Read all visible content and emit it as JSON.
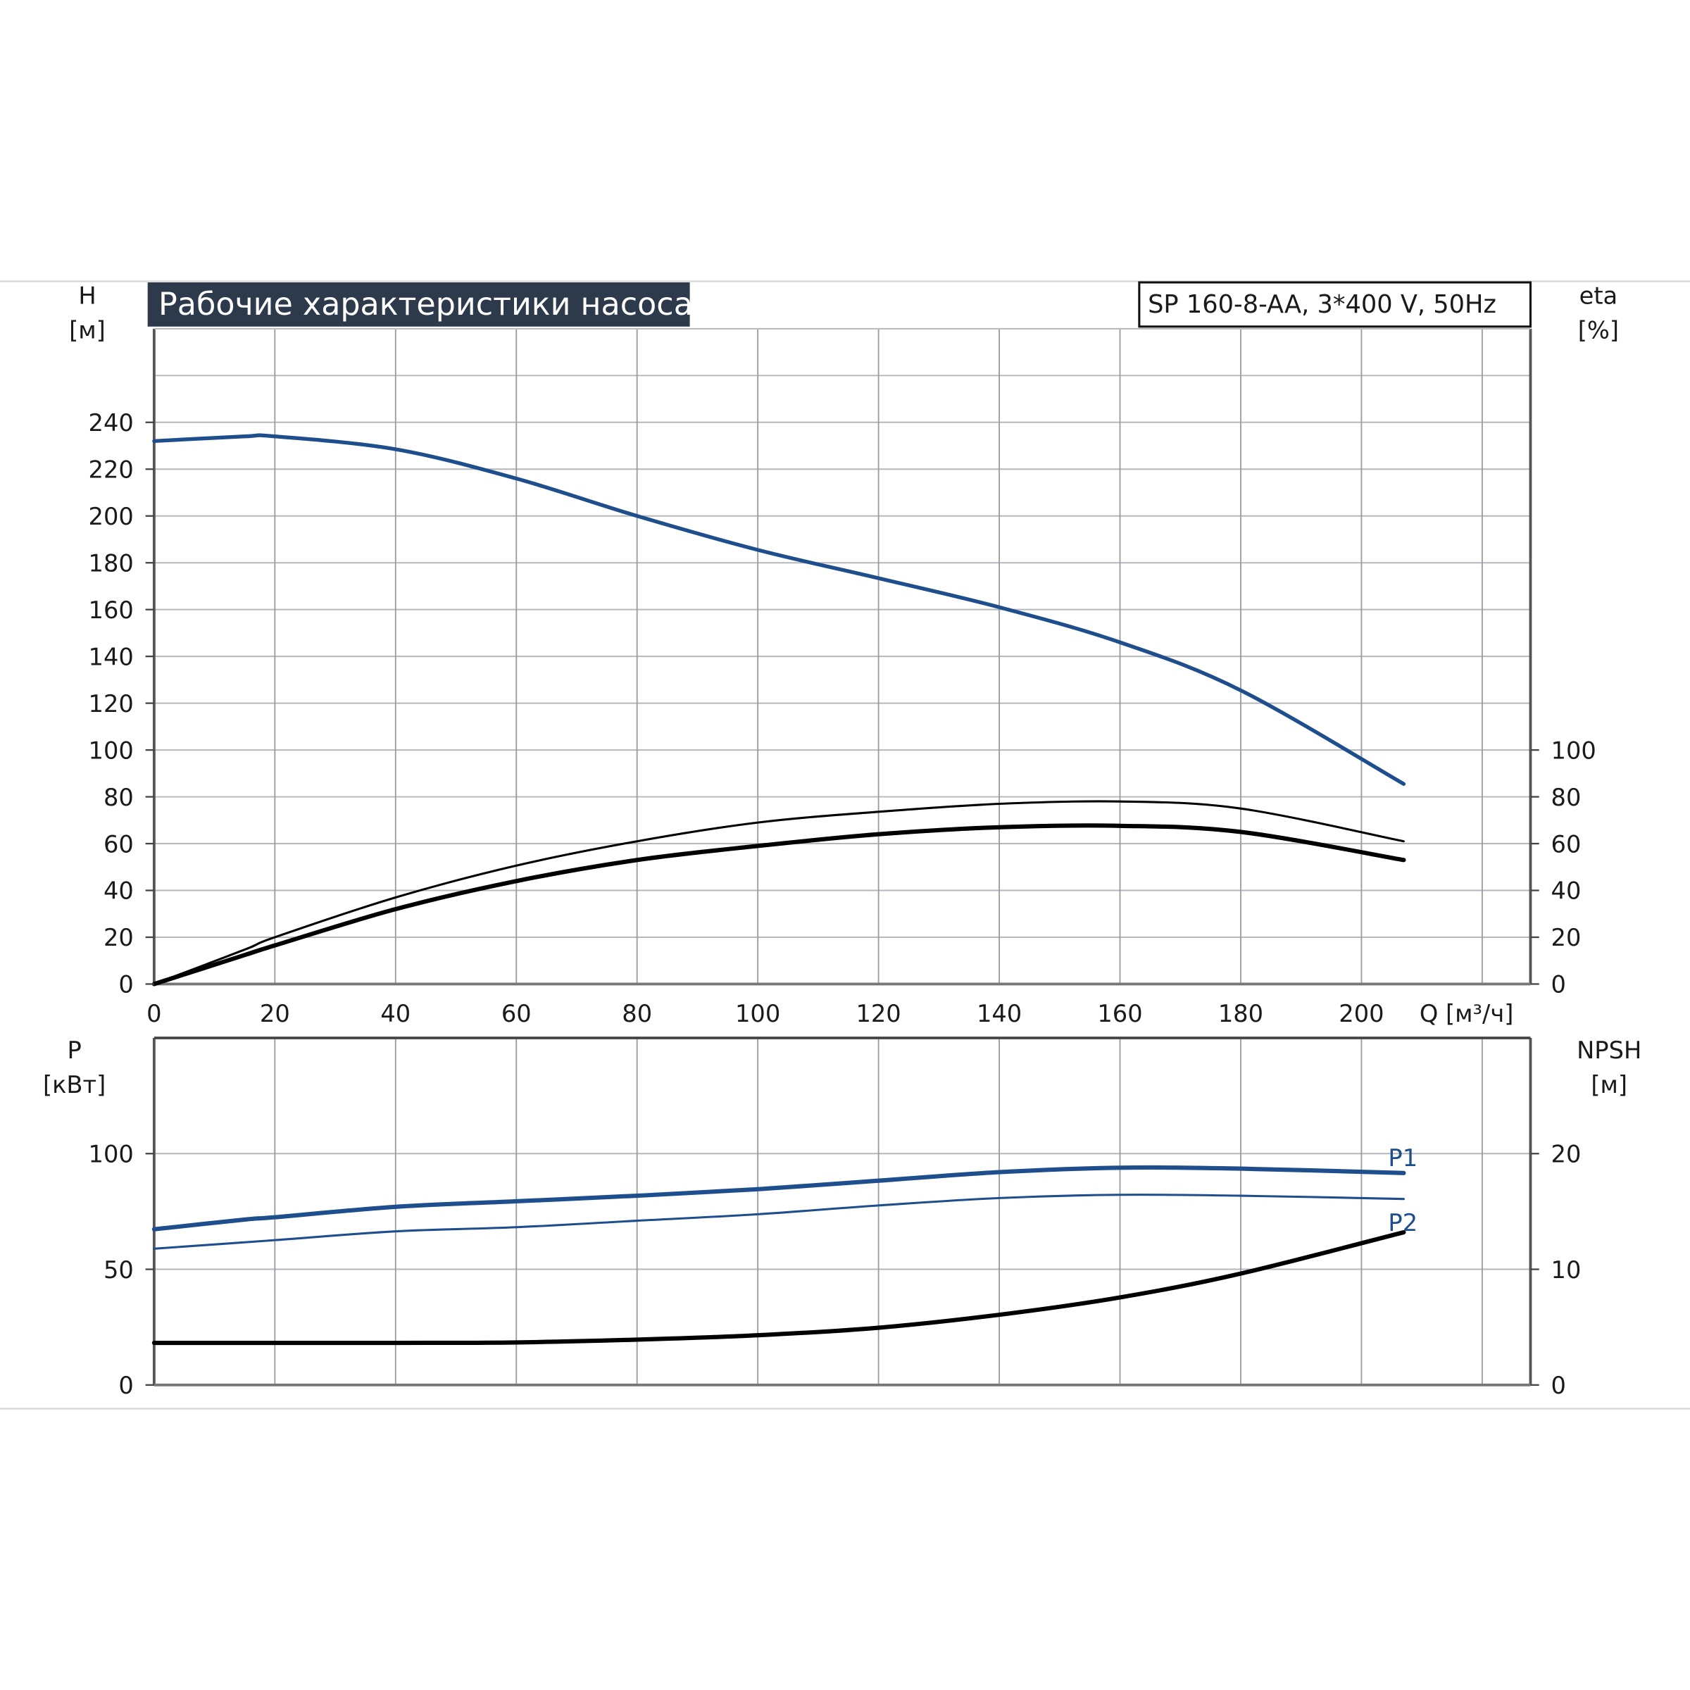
{
  "colors": {
    "blue": "#1f4e8c",
    "black": "#000000",
    "title_bg": "#2c3a4b",
    "grid": "#9a9ca3"
  },
  "chart_data": [
    {
      "type": "line",
      "title": "Рабочие характеристики насоса",
      "subtitle": "SP 160-8-AA, 3*400 V, 50Hz",
      "xlabel": "Q [м³/ч]",
      "ylabel_left": [
        "H",
        "[м]"
      ],
      "ylabel_right": [
        "eta",
        "[%]"
      ],
      "xlim": [
        0,
        228
      ],
      "ylim_left": [
        0,
        280
      ],
      "ylim_right": [
        0,
        280
      ],
      "grid": true,
      "x_ticks": [
        0,
        20,
        40,
        60,
        80,
        100,
        120,
        140,
        160,
        180,
        200
      ],
      "y_ticks_left": [
        0,
        20,
        40,
        60,
        80,
        100,
        120,
        140,
        160,
        180,
        200,
        220,
        240
      ],
      "y_ticks_right": [
        0,
        20,
        40,
        60,
        80,
        100
      ],
      "series": [
        {
          "id": "H",
          "color": "#1f4e8c",
          "axis": "left",
          "x": [
            0,
            15,
            20,
            40,
            60,
            80,
            100,
            120,
            140,
            160,
            180,
            207
          ],
          "y": [
            232,
            234,
            234,
            228.5,
            216,
            200,
            185.5,
            173.4,
            161,
            146,
            125.5,
            85.5
          ]
        },
        {
          "id": "eta-upper",
          "color": "#000000",
          "axis": "right",
          "x": [
            0,
            15,
            20,
            40,
            60,
            80,
            100,
            120,
            140,
            160,
            180,
            207
          ],
          "y": [
            0,
            14.7,
            20,
            37,
            50.6,
            61,
            69,
            73.6,
            77,
            78,
            75,
            61
          ]
        },
        {
          "id": "eta-lower",
          "color": "#000000",
          "axis": "right",
          "x": [
            0,
            15,
            20,
            40,
            60,
            80,
            100,
            120,
            140,
            160,
            180,
            207
          ],
          "y": [
            0,
            12.4,
            16.5,
            32,
            44,
            53,
            59,
            64,
            67,
            67.6,
            65,
            53
          ]
        }
      ]
    },
    {
      "type": "line",
      "ylabel_left": [
        "P",
        "[кВт]"
      ],
      "ylabel_right": [
        "NPSH",
        "[м]"
      ],
      "xlim": [
        0,
        228
      ],
      "ylim_left": [
        0,
        150
      ],
      "ylim_right": [
        0,
        30
      ],
      "grid": true,
      "y_ticks_left": [
        0,
        50,
        100
      ],
      "y_ticks_right": [
        0,
        10,
        20
      ],
      "series": [
        {
          "id": "P1",
          "name": "P1",
          "color": "#1f4e8c",
          "axis": "left",
          "x": [
            0,
            15,
            20,
            40,
            60,
            80,
            100,
            120,
            140,
            160,
            180,
            207
          ],
          "y": [
            67.3,
            71.5,
            72.5,
            77,
            79.4,
            81.8,
            84.6,
            88.3,
            92,
            93.9,
            93.5,
            91.6
          ]
        },
        {
          "id": "P2",
          "name": "P2",
          "color": "#1f4e8c",
          "axis": "left",
          "x": [
            0,
            20,
            40,
            60,
            80,
            100,
            120,
            140,
            160,
            180,
            207
          ],
          "y": [
            58.9,
            62.6,
            66.4,
            68.2,
            71,
            73.8,
            77.6,
            80.8,
            82.2,
            81.8,
            80.4
          ]
        },
        {
          "id": "NPSH",
          "color": "#000000",
          "axis": "right",
          "x": [
            0,
            15,
            40,
            60,
            80,
            100,
            120,
            140,
            160,
            180,
            207
          ],
          "y": [
            3.64,
            3.64,
            3.64,
            3.68,
            3.92,
            4.3,
            4.95,
            6.07,
            7.57,
            9.63,
            13.2
          ]
        }
      ]
    }
  ]
}
